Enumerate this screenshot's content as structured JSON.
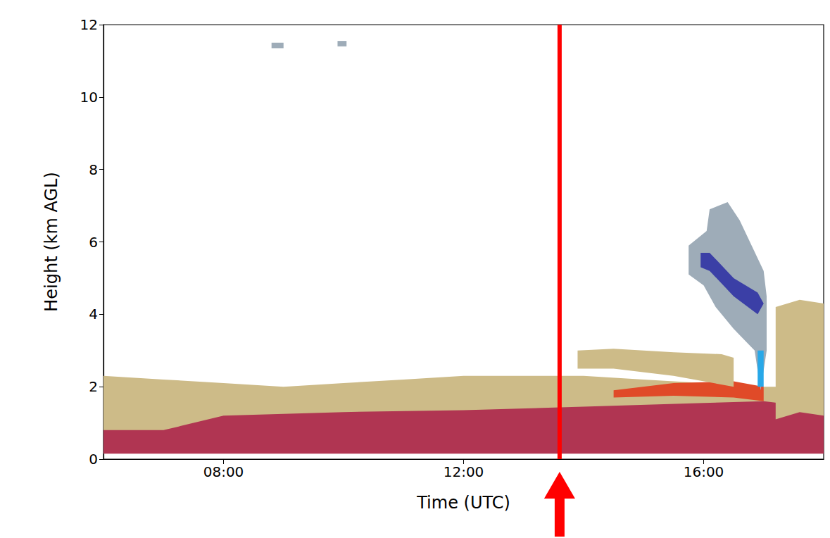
{
  "chart_data": {
    "type": "polygon",
    "x_label": "Time (UTC)",
    "y_label": "Height (km AGL)",
    "xlim": [
      6,
      18
    ],
    "xticks": [
      {
        "value": 8,
        "label": "08:00"
      },
      {
        "value": 12,
        "label": "12:00"
      },
      {
        "value": 16,
        "label": "16:00"
      }
    ],
    "ylim": [
      0,
      12
    ],
    "yticks": [
      0,
      2,
      4,
      6,
      8,
      10,
      12
    ],
    "grid": false,
    "tick_labels": true,
    "regions": [
      {
        "color": "#cdbb88",
        "x": [
          6,
          6,
          7,
          8,
          9,
          10,
          11,
          12,
          13,
          14,
          15,
          16,
          17,
          18,
          18
        ],
        "y": [
          0.2,
          2.3,
          2.2,
          2.1,
          2.0,
          2.1,
          2.2,
          2.3,
          2.3,
          2.3,
          2.2,
          2.1,
          2.0,
          2.0,
          0.2
        ]
      },
      {
        "color": "#b03552",
        "x": [
          6,
          6,
          7,
          7.5,
          8,
          10,
          12,
          14,
          16,
          17,
          18,
          18
        ],
        "y": [
          0.15,
          0.8,
          0.8,
          1.0,
          1.2,
          1.3,
          1.35,
          1.45,
          1.55,
          1.6,
          1.4,
          0.15
        ]
      },
      {
        "color": "#e04a28",
        "x": [
          14.5,
          15.5,
          16.5,
          17.0,
          17.0,
          16.5,
          15.5,
          14.5
        ],
        "y": [
          1.7,
          1.75,
          1.7,
          1.6,
          2.0,
          2.15,
          2.1,
          1.9
        ]
      },
      {
        "color": "#cdbb88",
        "x": [
          13.9,
          13.9,
          14.5,
          15.5,
          16.3,
          16.5,
          16.5,
          15.5,
          14.5
        ],
        "y": [
          2.5,
          3.0,
          3.05,
          2.95,
          2.9,
          2.8,
          2.0,
          2.3,
          2.5
        ]
      },
      {
        "color": "#cdbb88",
        "x": [
          17.2,
          17.2,
          17.6,
          18,
          18,
          17.6
        ],
        "y": [
          1.1,
          4.2,
          4.4,
          4.3,
          1.2,
          1.3
        ]
      },
      {
        "color": "#9eacb8",
        "x": [
          15.75,
          15.75,
          16.05,
          16.1,
          16.4,
          16.6,
          16.8,
          17.0,
          17.05,
          17.05,
          16.95,
          16.85,
          16.5,
          16.2,
          16.0
        ],
        "y": [
          5.1,
          5.9,
          6.3,
          6.9,
          7.1,
          6.6,
          5.9,
          5.2,
          4.5,
          3.0,
          1.9,
          3.0,
          3.6,
          4.2,
          4.8
        ]
      },
      {
        "color": "#3b3fa6",
        "x": [
          15.95,
          16.1,
          16.5,
          16.9,
          17.0,
          16.9,
          16.5,
          16.1,
          15.95
        ],
        "y": [
          5.7,
          5.7,
          5.0,
          4.6,
          4.3,
          4.0,
          4.5,
          5.2,
          5.3
        ]
      },
      {
        "color": "#28a8e8",
        "x": [
          16.9,
          17.0,
          17.0,
          16.9
        ],
        "y": [
          2.0,
          2.0,
          3.0,
          3.0
        ]
      },
      {
        "color": "#9eacb8",
        "x": [
          8.8,
          9.0,
          9.0,
          8.8
        ],
        "y": [
          11.35,
          11.35,
          11.5,
          11.5
        ]
      },
      {
        "color": "#9eacb8",
        "x": [
          9.9,
          10.05,
          10.05,
          9.9
        ],
        "y": [
          11.4,
          11.4,
          11.55,
          11.55
        ]
      }
    ],
    "annotations": [
      {
        "x": 13.6,
        "color": "#ff0000",
        "marker": "arrow"
      }
    ]
  }
}
